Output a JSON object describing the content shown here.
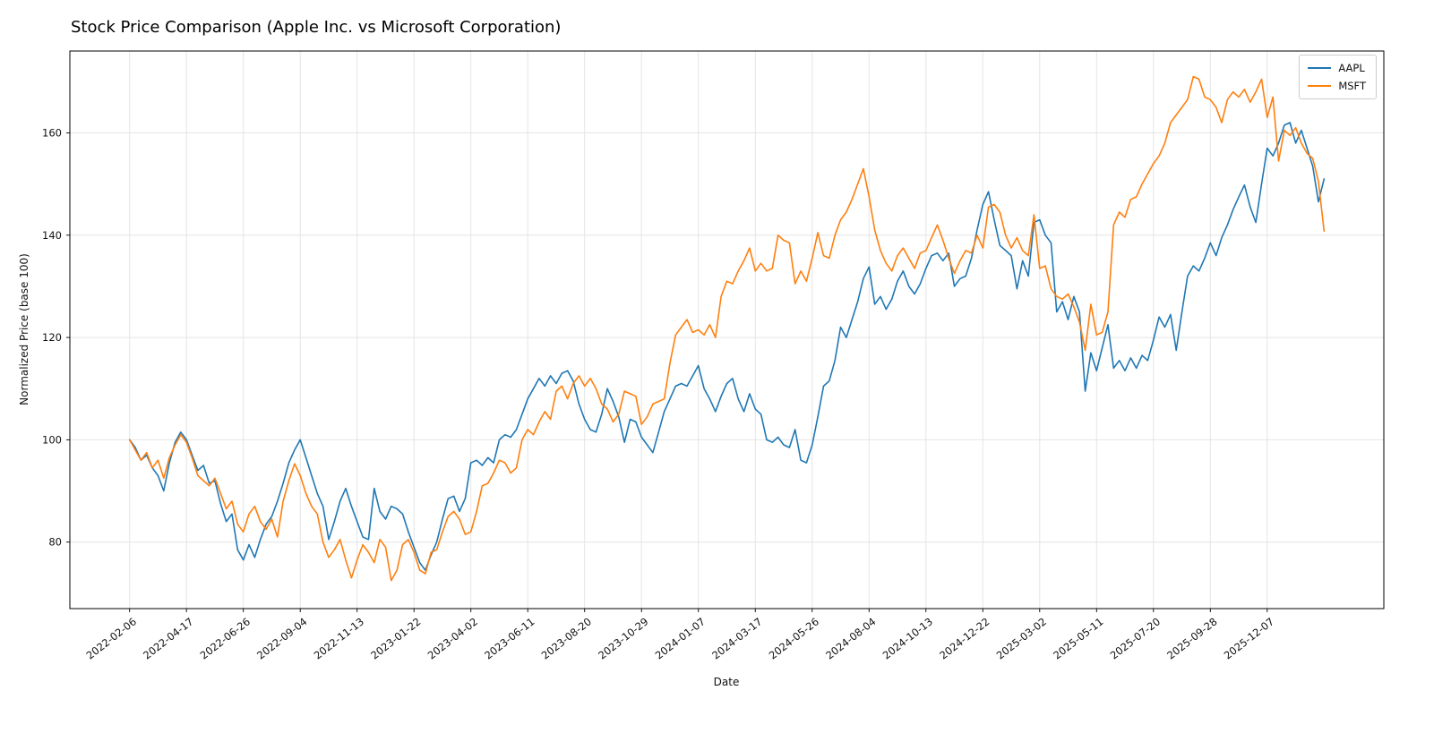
{
  "chart_data": {
    "type": "line",
    "title": "Stock Price Comparison (Apple Inc. vs Microsoft Corporation)",
    "xlabel": "Date",
    "ylabel": "Normalized Price (base 100)",
    "background": "#ffffff",
    "grid": true,
    "grid_color": "#e4e4e4",
    "legend_position": "upper right",
    "line_width": 1.6,
    "x_start_date": "2022-02-06",
    "x_interval_days": 7,
    "n_points": 211,
    "ylim": [
      67,
      176
    ],
    "xlim_margin_frac": 0.05,
    "y_ticks": [
      80,
      100,
      120,
      140,
      160
    ],
    "x_tick_indices": [
      0,
      10,
      20,
      30,
      40,
      50,
      60,
      70,
      80,
      90,
      100,
      110,
      120,
      130,
      140,
      150,
      160,
      170,
      180,
      190,
      200
    ],
    "x_tick_labels": [
      "2022-02-06",
      "2022-04-17",
      "2022-06-26",
      "2022-09-04",
      "2022-11-13",
      "2023-01-22",
      "2023-04-02",
      "2023-06-11",
      "2023-08-20",
      "2023-10-29",
      "2024-01-07",
      "2024-03-17",
      "2024-05-26",
      "2024-08-04",
      "2024-10-13",
      "2024-12-22",
      "2025-03-02",
      "2025-05-11",
      "2025-07-20",
      "2025-09-28",
      "2025-12-07"
    ],
    "series": [
      {
        "name": "AAPL",
        "color": "#1f77b4",
        "values": [
          100.0,
          98.5,
          96.0,
          97.0,
          94.5,
          93.0,
          90.0,
          95.5,
          99.5,
          101.5,
          100.0,
          97.0,
          94.0,
          95.0,
          91.5,
          92.0,
          87.5,
          84.0,
          85.5,
          78.5,
          76.5,
          79.5,
          77.0,
          80.5,
          83.5,
          85.0,
          88.0,
          91.5,
          95.5,
          98.0,
          100.0,
          96.5,
          93.0,
          89.5,
          87.0,
          80.5,
          84.0,
          88.0,
          90.5,
          87.0,
          84.0,
          81.0,
          80.5,
          90.5,
          86.0,
          84.5,
          87.0,
          86.5,
          85.5,
          82.0,
          79.0,
          76.0,
          74.5,
          77.5,
          80.0,
          84.5,
          88.5,
          89.0,
          86.0,
          88.5,
          95.5,
          96.0,
          95.0,
          96.5,
          95.5,
          100.0,
          101.0,
          100.5,
          102.0,
          105.0,
          108.0,
          110.0,
          112.0,
          110.5,
          112.5,
          111.0,
          113.0,
          113.5,
          111.5,
          107.0,
          104.0,
          102.0,
          101.5,
          105.0,
          110.0,
          107.5,
          104.5,
          99.5,
          104.0,
          103.5,
          100.5,
          99.0,
          97.5,
          101.5,
          105.5,
          108.0,
          110.5,
          111.0,
          110.5,
          112.5,
          114.5,
          110.0,
          108.0,
          105.5,
          108.5,
          111.0,
          112.0,
          108.0,
          105.5,
          109.0,
          106.0,
          105.0,
          100.0,
          99.5,
          100.5,
          99.0,
          98.5,
          102.0,
          96.0,
          95.5,
          99.0,
          104.5,
          110.5,
          111.5,
          115.5,
          122.0,
          120.0,
          123.5,
          127.0,
          131.5,
          133.8,
          126.5,
          128.0,
          125.5,
          127.5,
          131.0,
          133.0,
          130.0,
          128.5,
          130.5,
          133.5,
          136.0,
          136.5,
          135.0,
          136.5,
          130.0,
          131.5,
          132.0,
          135.5,
          141.0,
          146.0,
          148.5,
          143.0,
          138.0,
          137.0,
          136.0,
          129.5,
          135.0,
          132.0,
          142.5,
          143.0,
          140.0,
          138.5,
          125.0,
          127.0,
          123.5,
          128.0,
          125.0,
          109.5,
          117.0,
          113.5,
          118.0,
          122.5,
          114.0,
          115.5,
          113.5,
          116.0,
          114.0,
          116.5,
          115.5,
          119.5,
          124.0,
          122.0,
          124.5,
          117.5,
          125.0,
          132.0,
          134.0,
          133.0,
          135.5,
          138.5,
          136.0,
          139.5,
          142.0,
          145.0,
          147.5,
          149.8,
          145.5,
          142.5,
          150.0,
          157.0,
          155.5,
          158.0,
          161.5,
          162.0,
          158.0,
          160.5,
          157.0,
          153.5,
          146.5,
          151.0
        ]
      },
      {
        "name": "MSFT",
        "color": "#ff7f0e",
        "values": [
          100.0,
          98.0,
          96.0,
          97.5,
          94.5,
          96.0,
          92.5,
          96.5,
          99.0,
          101.0,
          99.5,
          96.5,
          93.0,
          92.0,
          91.0,
          92.5,
          89.5,
          86.5,
          88.0,
          83.5,
          82.0,
          85.5,
          87.0,
          84.0,
          82.5,
          84.5,
          81.0,
          88.0,
          92.0,
          95.3,
          93.0,
          89.5,
          87.0,
          85.5,
          80.0,
          77.0,
          78.5,
          80.5,
          76.5,
          73.0,
          76.5,
          79.5,
          78.0,
          76.0,
          80.5,
          79.0,
          72.5,
          74.5,
          79.5,
          80.5,
          78.0,
          74.5,
          73.8,
          78.0,
          78.5,
          82.0,
          85.0,
          86.0,
          84.5,
          81.5,
          82.0,
          86.0,
          91.0,
          91.5,
          93.5,
          96.0,
          95.5,
          93.5,
          94.5,
          100.0,
          102.0,
          101.0,
          103.5,
          105.5,
          104.0,
          109.5,
          110.5,
          108.0,
          111.0,
          112.5,
          110.5,
          112.0,
          110.0,
          107.0,
          106.0,
          103.5,
          105.0,
          109.5,
          109.0,
          108.5,
          103.0,
          104.5,
          107.0,
          107.5,
          108.0,
          115.0,
          120.5,
          122.0,
          123.5,
          121.0,
          121.5,
          120.5,
          122.5,
          120.0,
          128.0,
          131.0,
          130.5,
          133.0,
          135.0,
          137.5,
          133.0,
          134.5,
          133.0,
          133.5,
          140.0,
          139.0,
          138.5,
          130.5,
          133.0,
          131.0,
          135.5,
          140.5,
          136.0,
          135.5,
          140.0,
          143.0,
          144.5,
          147.0,
          150.0,
          153.0,
          147.5,
          141.0,
          137.0,
          134.5,
          133.0,
          136.0,
          137.5,
          135.5,
          133.5,
          136.5,
          137.0,
          139.5,
          142.0,
          139.0,
          135.5,
          132.5,
          135.0,
          137.0,
          136.5,
          140.0,
          137.5,
          145.5,
          146.0,
          144.5,
          140.0,
          137.5,
          139.5,
          137.0,
          136.0,
          144.0,
          133.5,
          134.0,
          129.5,
          128.0,
          127.5,
          128.5,
          126.0,
          123.0,
          117.5,
          126.5,
          120.5,
          121.0,
          125.0,
          142.0,
          144.5,
          143.5,
          147.0,
          147.5,
          150.0,
          152.0,
          154.0,
          155.5,
          158.0,
          162.0,
          163.5,
          165.0,
          166.5,
          171.0,
          170.5,
          167.0,
          166.5,
          165.0,
          162.0,
          166.5,
          168.0,
          167.0,
          168.5,
          166.0,
          168.0,
          170.5,
          163.0,
          167.0,
          154.5,
          160.5,
          159.5,
          161.0,
          158.0,
          156.0,
          155.0,
          150.5,
          140.8
        ]
      }
    ]
  }
}
